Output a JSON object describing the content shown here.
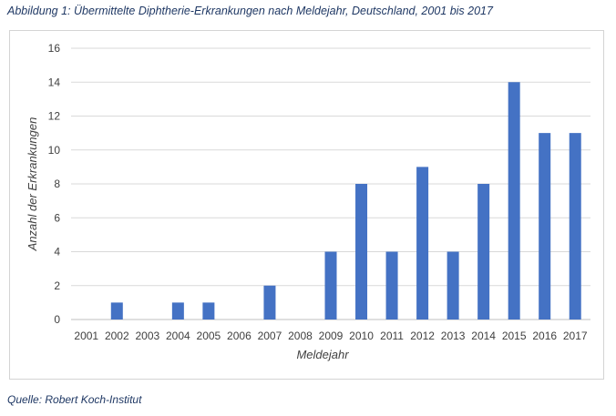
{
  "caption": "Abbildung 1: Übermittelte Diphtherie-Erkrankungen nach Meldejahr, Deutschland, 2001 bis 2017",
  "source": "Quelle: Robert Koch-Institut",
  "colors": {
    "bar": "#4472c4",
    "grid": "#d9d9d9",
    "axis": "#bfbfbf"
  },
  "chart_data": {
    "type": "bar",
    "title": "",
    "xlabel": "Meldejahr",
    "ylabel": "Anzahl der Erkrankungen",
    "categories": [
      "2001",
      "2002",
      "2003",
      "2004",
      "2005",
      "2006",
      "2007",
      "2008",
      "2009",
      "2010",
      "2011",
      "2012",
      "2013",
      "2014",
      "2015",
      "2016",
      "2017"
    ],
    "values": [
      0,
      1,
      0,
      1,
      1,
      0,
      2,
      0,
      4,
      8,
      4,
      9,
      4,
      8,
      14,
      11,
      11
    ],
    "ylim": [
      0,
      16
    ],
    "yticks": [
      0,
      2,
      4,
      6,
      8,
      10,
      12,
      14,
      16
    ],
    "grid": true,
    "legend": "none"
  }
}
